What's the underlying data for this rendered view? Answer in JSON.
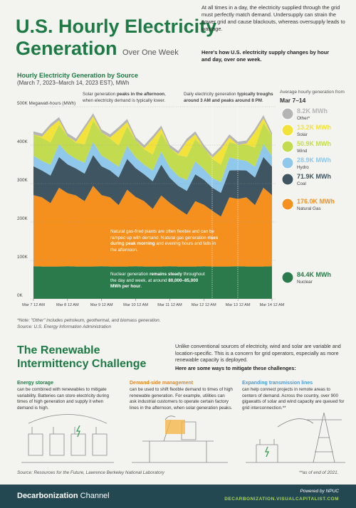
{
  "header": {
    "title_line1": "U.S. Hourly Electricity",
    "title_line2": "Generation",
    "title_suffix": "Over One Week",
    "intro": "At all times in a day, the electricity supplied through the grid must perfectly match demand. Undersupply can strain the power grid and cause blackouts, whereas oversupply leads to wastage.",
    "intro_bold": "Here's how U.S. electricity supply changes by hour and day, over one week."
  },
  "chart_data": {
    "type": "area",
    "stacked": true,
    "title": "Hourly Electricity Generation by Source",
    "subtitle": "(March 7, 2023–March 14, 2023 EST), MWh",
    "categories": [
      "Mar 7 12 AM",
      null,
      null,
      null,
      "Mar 8 12 AM",
      null,
      null,
      null,
      "Mar 9 12 AM",
      null,
      null,
      null,
      "Mar 10 12 AM",
      null,
      null,
      null,
      "Mar 11 12 AM",
      null,
      null,
      null,
      "Mar 12 12 AM",
      null,
      null,
      null,
      "Mar 13 12 AM",
      null,
      null,
      null,
      "Mar 14 12 AM"
    ],
    "ylim": [
      0,
      500000
    ],
    "yticks": [
      {
        "value": 0,
        "label": "0K"
      },
      {
        "value": 100000,
        "label": "100K"
      },
      {
        "value": 200000,
        "label": "200K"
      },
      {
        "value": 300000,
        "label": "300K"
      },
      {
        "value": 400000,
        "label": "400K"
      },
      {
        "value": 500000,
        "label": "500K Megawatt-hours (MWh)"
      }
    ],
    "grid": true,
    "legend_title": "Average hourly generation from",
    "legend_period": "Mar 7–14",
    "series": [
      {
        "name": "Other*",
        "color": "#b5b5b5",
        "average_label": "8.2K MWh",
        "values": [
          8000,
          8000,
          8000,
          8000,
          8000,
          8000,
          8000,
          8000,
          8000,
          8000,
          8000,
          8000,
          8000,
          8000,
          8000,
          8000,
          8000,
          8000,
          8000,
          8000,
          8000,
          8000,
          8000,
          8000,
          8000,
          8000,
          8000,
          8000,
          8000
        ]
      },
      {
        "name": "Solar",
        "color": "#f2e23a",
        "average_label": "13.2K MWh",
        "values": [
          0,
          3000,
          40000,
          12000,
          0,
          3000,
          40000,
          12000,
          0,
          3000,
          40000,
          12000,
          0,
          3000,
          40000,
          12000,
          0,
          3000,
          40000,
          12000,
          0,
          3000,
          40000,
          12000,
          0,
          3000,
          40000,
          12000,
          0
        ]
      },
      {
        "name": "Wind",
        "color": "#c3dc4f",
        "average_label": "50.9K MWh",
        "values": [
          55000,
          60000,
          58000,
          50000,
          45000,
          42000,
          48000,
          55000,
          60000,
          58000,
          55000,
          50000,
          45000,
          40000,
          42000,
          48000,
          50000,
          55000,
          60000,
          58000,
          55000,
          50000,
          45000,
          40000,
          38000,
          42000,
          50000,
          55000,
          52000
        ]
      },
      {
        "name": "Hydro",
        "color": "#8fc8ea",
        "average_label": "28.9K MWh",
        "values": [
          28000,
          25000,
          28000,
          34000,
          28000,
          25000,
          28000,
          34000,
          28000,
          25000,
          28000,
          34000,
          28000,
          25000,
          28000,
          34000,
          28000,
          25000,
          28000,
          34000,
          28000,
          25000,
          28000,
          34000,
          28000,
          25000,
          28000,
          34000,
          28000
        ]
      },
      {
        "name": "Coal",
        "color": "#3f5561",
        "average_label": "71.9K MWh",
        "values": [
          75000,
          70000,
          72000,
          80000,
          75000,
          70000,
          72000,
          80000,
          75000,
          70000,
          72000,
          80000,
          75000,
          70000,
          72000,
          80000,
          65000,
          60000,
          62000,
          70000,
          65000,
          60000,
          62000,
          70000,
          75000,
          70000,
          72000,
          80000,
          74000
        ]
      },
      {
        "name": "Natural Gas",
        "color": "#f5901e",
        "average_label": "176.0K MWh",
        "values": [
          185000,
          180000,
          165000,
          205000,
          190000,
          185000,
          170000,
          210000,
          185000,
          180000,
          160000,
          200000,
          180000,
          170000,
          150000,
          185000,
          165000,
          150000,
          135000,
          170000,
          160000,
          145000,
          130000,
          180000,
          175000,
          180000,
          160000,
          205000,
          185000
        ]
      },
      {
        "name": "Nuclear",
        "color": "#2b7a4b",
        "average_label": "84.4K MWh",
        "values": [
          85000,
          84000,
          84000,
          84000,
          85000,
          84000,
          84000,
          84000,
          85000,
          84000,
          84000,
          84000,
          85000,
          84000,
          84000,
          84000,
          85000,
          84000,
          84000,
          84000,
          85000,
          84000,
          84000,
          84000,
          85000,
          84000,
          84000,
          84000,
          85000
        ]
      }
    ],
    "annotations": [
      [
        {
          "text": "Solar generation "
        },
        {
          "text": "peaks in the afternoon",
          "bold": true
        },
        {
          "text": ", when electricity demand is typically lower."
        }
      ],
      [
        {
          "text": "Daily electricity generation "
        },
        {
          "text": "typically troughs around 3 AM and peaks around 8 PM",
          "bold": true
        },
        {
          "text": "."
        }
      ],
      [
        {
          "text": "Natural gas-fired plants are often flexible and can be ramped up with demand. Natural gas generation "
        },
        {
          "text": "rises during peak morning",
          "bold": true
        },
        {
          "text": " and evening hours and falls in the afternoon."
        }
      ],
      [
        {
          "text": "Nuclear generation "
        },
        {
          "text": "remains steady",
          "bold": true
        },
        {
          "text": " throughout the day and week, at around "
        },
        {
          "text": "80,000–85,000 MWh per hour",
          "bold": true
        },
        {
          "text": "."
        }
      ]
    ],
    "footnote": "*Note: \"Other\" includes petroleum, geothermal, and biomass generation.",
    "source": "Source: U.S. Energy Information Administration"
  },
  "challenge": {
    "title_line1": "The Renewable",
    "title_line2": "Intermittency Challenge",
    "intro": "Unlike conventional sources of electricity, wind and solar are variable and location-specific. This is a concern for grid operators, especially as more renewable capacity is deployed.",
    "intro_bold": "Here are some ways to mitigate these challenges:",
    "items": [
      {
        "title": "Energy storage",
        "text": "can be combined with renewables to mitigate variability. Batteries can store electricity during times of high generation and supply it when demand is high."
      },
      {
        "title": "Demand-side management",
        "text": "can be used to shift flexible demand to times of high renewable generation. For example, utilities can ask industrial customers to operate certain factory lines in the afternoon, when solar generation peaks."
      },
      {
        "title": "Expanding transmission lines",
        "text": "can help connect projects in remote areas to centers of demand. Across the country, over 900 gigawatts of solar and wind capacity are queued for grid interconnection.**"
      }
    ],
    "source": "Source: Resources for the Future, Lawrence Berkeley National Laboratory",
    "note": "**as of end of 2021."
  },
  "footer": {
    "brand": "Decarbonization",
    "brand_suffix": "Channel",
    "powered": "Powered by NPUC",
    "url": "DECARBONIZATION.VISUALCAPITALIST.COM"
  }
}
